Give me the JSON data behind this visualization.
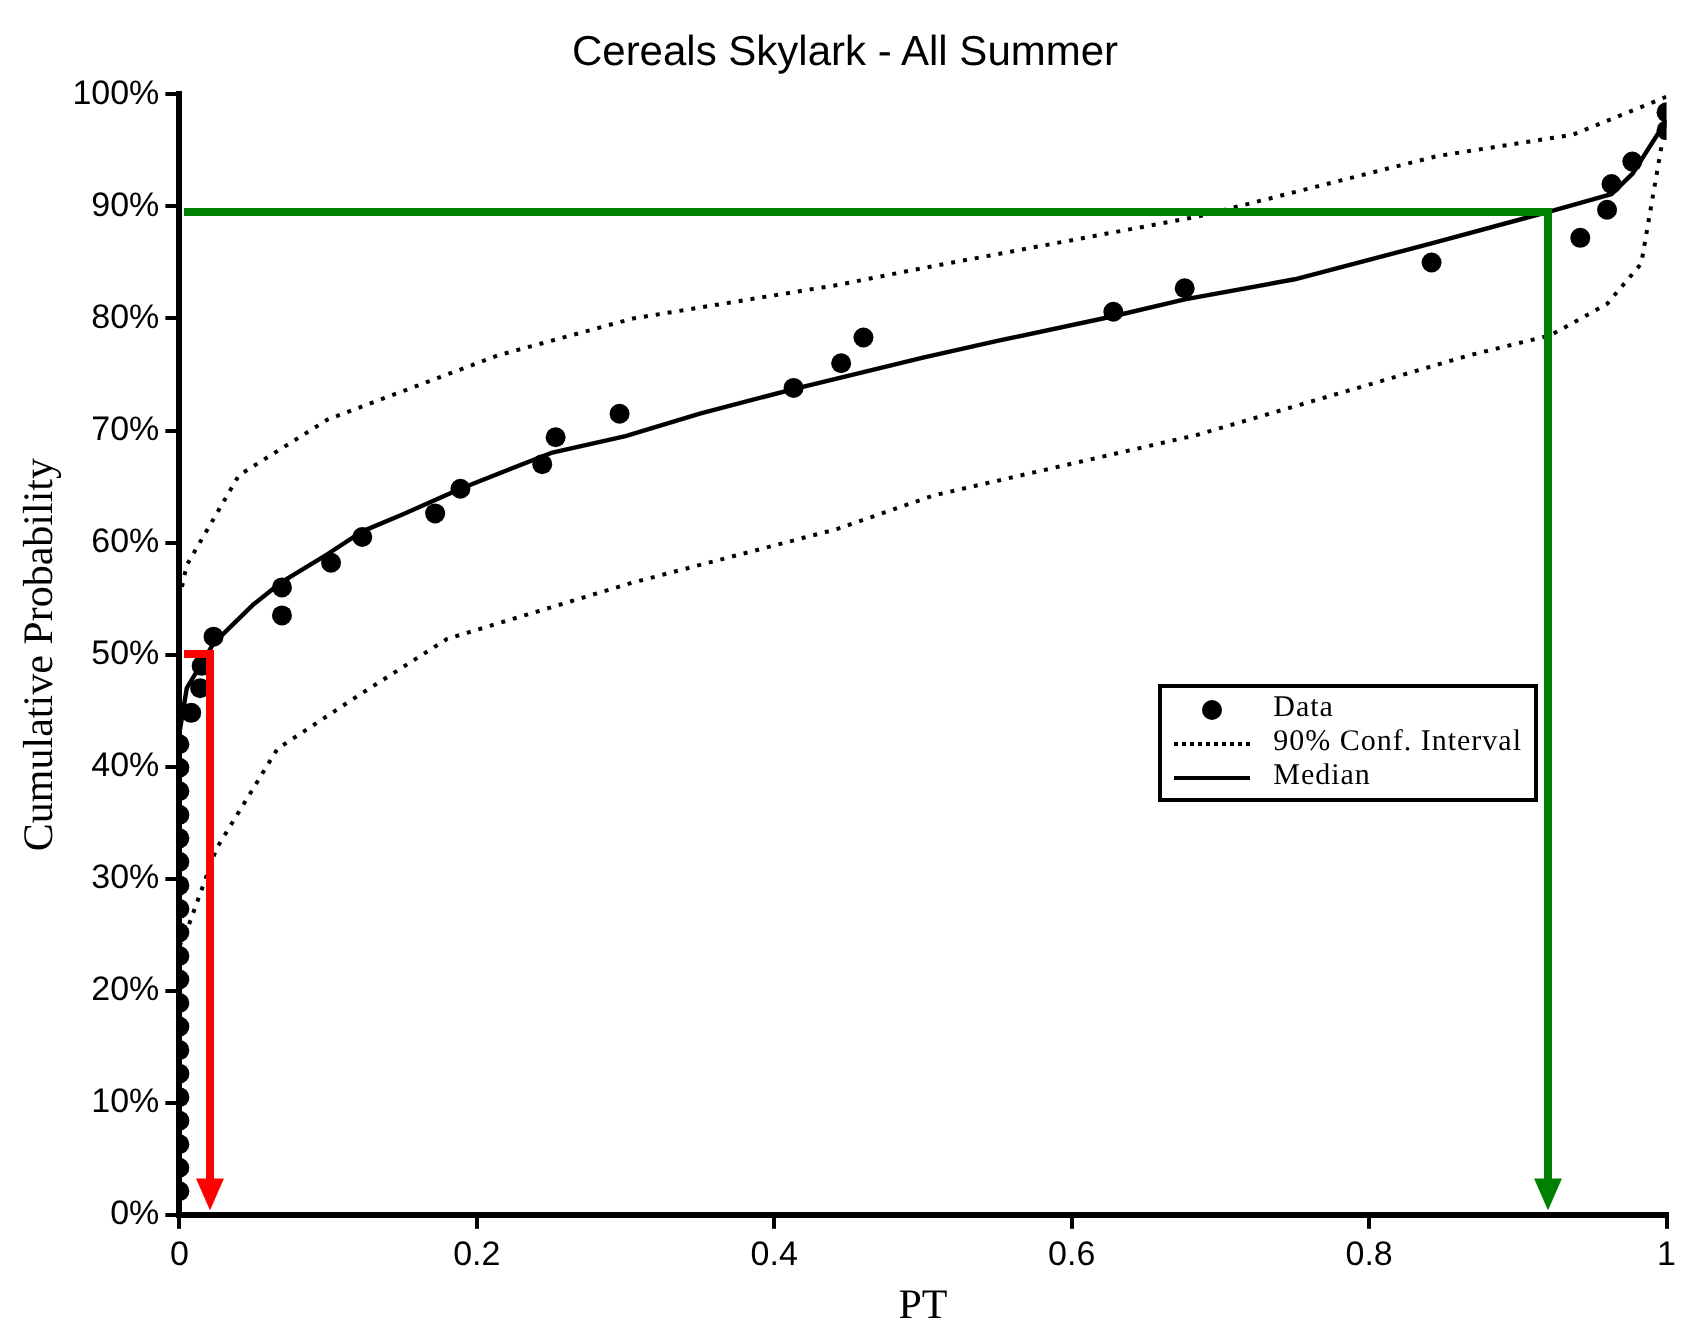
{
  "chart_data": {
    "type": "scatter",
    "title": "Cereals Skylark - All Summer",
    "xlabel": "PT",
    "ylabel": "Cumulative Probability",
    "xlim": [
      0,
      1
    ],
    "xticks": [
      0,
      0.2,
      0.4,
      0.6,
      0.8,
      1
    ],
    "ylim": [
      0,
      100
    ],
    "yticks": [
      {
        "value": 0,
        "label": "0%"
      },
      {
        "value": 10,
        "label": "10%"
      },
      {
        "value": 20,
        "label": "20%"
      },
      {
        "value": 30,
        "label": "30%"
      },
      {
        "value": 40,
        "label": "40%"
      },
      {
        "value": 50,
        "label": "50%"
      },
      {
        "value": 60,
        "label": "60%"
      },
      {
        "value": 70,
        "label": "70%"
      },
      {
        "value": 80,
        "label": "80%"
      },
      {
        "value": 90,
        "label": "90%"
      },
      {
        "value": 100,
        "label": "100%"
      }
    ],
    "grid": false,
    "legend": "center right",
    "series": [
      {
        "name": "Data",
        "marker": "circle",
        "color": "#000000",
        "x": [
          0,
          0,
          0,
          0,
          0,
          0,
          0,
          0,
          0,
          0,
          0,
          0,
          0,
          0,
          0,
          0,
          0,
          0,
          0,
          0,
          0.008,
          0.014,
          0.015,
          0.023,
          0.069,
          0.069,
          0.102,
          0.123,
          0.172,
          0.189,
          0.244,
          0.253,
          0.296,
          0.413,
          0.445,
          0.46,
          0.628,
          0.676,
          0.842,
          0.942,
          0.96,
          0.963,
          0.977,
          1,
          1
        ],
        "values": [
          2.1,
          4.2,
          6.3,
          8.4,
          10.5,
          12.6,
          14.7,
          16.8,
          18.9,
          21,
          23.1,
          25.2,
          27.3,
          29.4,
          31.5,
          33.6,
          35.7,
          37.8,
          39.9,
          42,
          44.8,
          47,
          49,
          51.6,
          53.5,
          56,
          58.2,
          60.5,
          62.6,
          64.8,
          67,
          69.4,
          71.5,
          73.8,
          76,
          78.3,
          80.6,
          82.7,
          85,
          87.2,
          89.7,
          92,
          94,
          96.8,
          98.4
        ]
      },
      {
        "name": "90% Conf. Interval",
        "type": "line",
        "line_style": "dotted",
        "color": "#000000",
        "x": [
          0,
          0.005,
          0.04,
          0.1,
          0.214,
          0.305,
          0.443,
          0.5,
          0.685,
          0.846,
          0.937,
          1
        ],
        "values": [
          55,
          58,
          66,
          71,
          76.7,
          80,
          83,
          84.5,
          89.1,
          94.5,
          96.4,
          99.8
        ]
      },
      {
        "type": "line",
        "line_style": "dotted",
        "color": "#000000",
        "x": [
          0,
          0.004,
          0.025,
          0.066,
          0.121,
          0.18,
          0.304,
          0.442,
          0.507,
          0.684,
          0.867,
          0.922,
          0.96,
          0.983,
          1
        ],
        "values": [
          24,
          25,
          32.7,
          41.6,
          46.4,
          51.4,
          56.4,
          61.2,
          64.2,
          69.6,
          76.7,
          78.5,
          81.3,
          84.9,
          98
        ]
      },
      {
        "name": "Median",
        "type": "line",
        "line_style": "solid",
        "color": "#000000",
        "x": [
          0,
          0.005,
          0.023,
          0.05,
          0.069,
          0.1,
          0.123,
          0.15,
          0.189,
          0.25,
          0.3,
          0.35,
          0.413,
          0.5,
          0.55,
          0.628,
          0.676,
          0.75,
          0.842,
          0.92,
          0.963,
          0.977,
          1
        ],
        "values": [
          43,
          47,
          51,
          54.5,
          56.5,
          59,
          61,
          62.5,
          64.8,
          68,
          69.5,
          71.5,
          73.7,
          76.5,
          78,
          80.2,
          81.7,
          83.5,
          86.7,
          89.5,
          91.1,
          92.9,
          97.7
        ]
      }
    ]
  }
}
